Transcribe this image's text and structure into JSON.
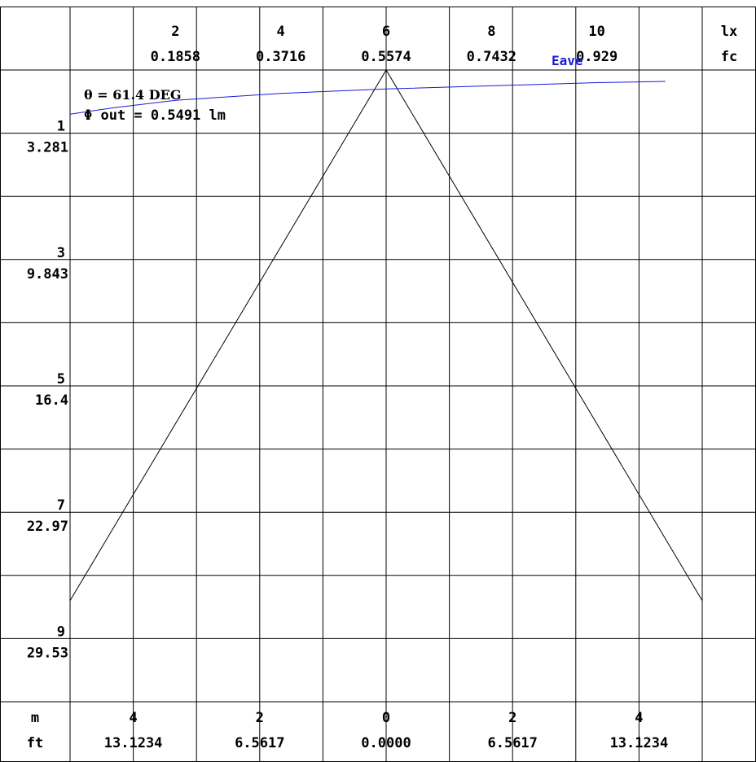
{
  "chart_data": {
    "type": "line",
    "colors": {
      "grid": "#000000",
      "beam": "#000000",
      "eave": "#1a1adb"
    },
    "top_axis": {
      "ticks": [
        {
          "lx": "2",
          "fc": "0.1858"
        },
        {
          "lx": "4",
          "fc": "0.3716"
        },
        {
          "lx": "6",
          "fc": "0.5574"
        },
        {
          "lx": "8",
          "fc": "0.7432"
        },
        {
          "lx": "10",
          "fc": "0.929"
        }
      ],
      "unit_primary": "lx",
      "unit_secondary": "fc",
      "range_lx": [
        0,
        12
      ]
    },
    "left_axis": {
      "ticks": [
        {
          "m": "1",
          "ft": "3.281"
        },
        {
          "m": "3",
          "ft": "9.843"
        },
        {
          "m": "5",
          "ft": "16.4"
        },
        {
          "m": "7",
          "ft": "22.97"
        },
        {
          "m": "9",
          "ft": "29.53"
        }
      ],
      "range_m": [
        0,
        10
      ]
    },
    "bottom_axis": {
      "unit_primary": "m",
      "unit_secondary": "ft",
      "ticks": [
        {
          "m": "4",
          "ft": "13.1234"
        },
        {
          "m": "2",
          "ft": "6.5617"
        },
        {
          "m": "0",
          "ft": "0.0000"
        },
        {
          "m": "2",
          "ft": "6.5617"
        },
        {
          "m": "4",
          "ft": "13.1234"
        }
      ],
      "range_m": [
        -5,
        5
      ]
    },
    "beam": {
      "half_angle_deg": 61.4,
      "points": [
        {
          "x": -5,
          "depth": 8.4
        },
        {
          "x": 0,
          "depth": 0
        },
        {
          "x": 5,
          "depth": 8.4
        }
      ]
    },
    "eave_series": {
      "name": "Eave",
      "points": [
        {
          "depth": 0.7,
          "lx": 0.0
        },
        {
          "depth": 0.6,
          "lx": 0.8
        },
        {
          "depth": 0.48,
          "lx": 2.0
        },
        {
          "depth": 0.37,
          "lx": 4.0
        },
        {
          "depth": 0.3,
          "lx": 6.0
        },
        {
          "depth": 0.25,
          "lx": 8.0
        },
        {
          "depth": 0.2,
          "lx": 10.0
        },
        {
          "depth": 0.18,
          "lx": 11.3
        }
      ]
    },
    "annotations": {
      "theta": "θ = 61.4  DEG",
      "flux": "Φ out = 0.5491 lm"
    },
    "grid": true
  }
}
